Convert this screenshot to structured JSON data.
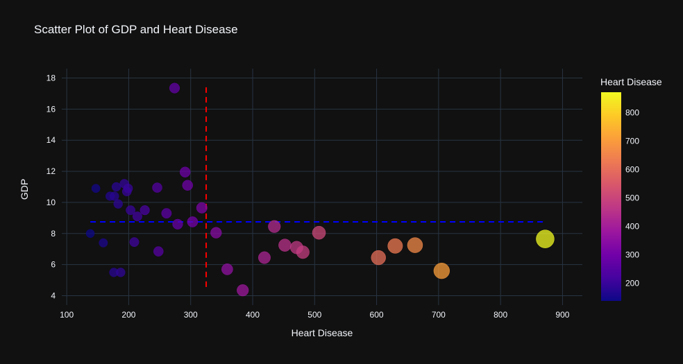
{
  "chart_data": {
    "type": "scatter",
    "title": "Scatter Plot of GDP and Heart Disease",
    "xlabel": "Heart Disease",
    "ylabel": "GDP",
    "xlim": [
      92,
      932
    ],
    "ylim": [
      3.4,
      18.6
    ],
    "x_ticks": [
      100,
      200,
      300,
      400,
      500,
      600,
      700,
      800,
      900
    ],
    "y_ticks": [
      4,
      6,
      8,
      10,
      12,
      14,
      16,
      18
    ],
    "grid": true,
    "colorbar": {
      "title": "Heart Disease",
      "range": [
        138,
        872
      ],
      "ticks": [
        200,
        300,
        400,
        500,
        600,
        700,
        800
      ],
      "colorscale": [
        "#0d0887",
        "#46039f",
        "#7201a8",
        "#9c179e",
        "#bd3786",
        "#d8576b",
        "#ed7953",
        "#fb9f3a",
        "#fdca26",
        "#f0f921"
      ]
    },
    "color_by": "Heart Disease",
    "size_by": "Heart Disease",
    "point_opacity": 0.75,
    "reference_lines": [
      {
        "orientation": "vertical",
        "x": 325,
        "y_range": [
          4.3,
          17.4
        ],
        "color": "#ff0000",
        "style": "dashed"
      },
      {
        "orientation": "horizontal",
        "y": 8.75,
        "x_range": [
          138,
          872
        ],
        "color": "#0000ff",
        "style": "dashed"
      }
    ],
    "points": [
      {
        "x": 138,
        "y": 8.0
      },
      {
        "x": 147,
        "y": 10.9
      },
      {
        "x": 159,
        "y": 7.4
      },
      {
        "x": 170,
        "y": 10.4
      },
      {
        "x": 176,
        "y": 5.5
      },
      {
        "x": 177,
        "y": 10.4
      },
      {
        "x": 180,
        "y": 11.0
      },
      {
        "x": 183,
        "y": 9.9
      },
      {
        "x": 187,
        "y": 5.5
      },
      {
        "x": 193,
        "y": 11.2
      },
      {
        "x": 197,
        "y": 10.7
      },
      {
        "x": 199,
        "y": 10.9
      },
      {
        "x": 203,
        "y": 9.5
      },
      {
        "x": 209,
        "y": 7.45
      },
      {
        "x": 214,
        "y": 9.1
      },
      {
        "x": 226,
        "y": 9.5
      },
      {
        "x": 246,
        "y": 10.95
      },
      {
        "x": 248,
        "y": 6.85
      },
      {
        "x": 261,
        "y": 9.3
      },
      {
        "x": 274,
        "y": 17.35
      },
      {
        "x": 279,
        "y": 8.6
      },
      {
        "x": 291,
        "y": 11.95
      },
      {
        "x": 295,
        "y": 11.1
      },
      {
        "x": 303,
        "y": 8.75
      },
      {
        "x": 318,
        "y": 9.65
      },
      {
        "x": 341,
        "y": 8.05
      },
      {
        "x": 359,
        "y": 5.7
      },
      {
        "x": 384,
        "y": 4.35
      },
      {
        "x": 419,
        "y": 6.45
      },
      {
        "x": 435,
        "y": 8.45
      },
      {
        "x": 452,
        "y": 7.25
      },
      {
        "x": 471,
        "y": 7.1
      },
      {
        "x": 481,
        "y": 6.8
      },
      {
        "x": 507,
        "y": 8.05
      },
      {
        "x": 603,
        "y": 6.45
      },
      {
        "x": 630,
        "y": 7.2
      },
      {
        "x": 662,
        "y": 7.25
      },
      {
        "x": 705,
        "y": 5.6
      },
      {
        "x": 872,
        "y": 7.65
      }
    ]
  }
}
